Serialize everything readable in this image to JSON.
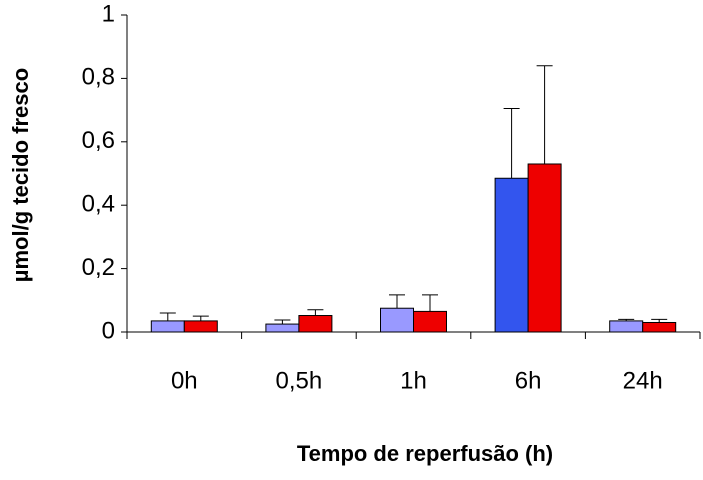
{
  "chart_data": {
    "type": "bar",
    "x_label": "Tempo de reperfusão (h)",
    "y_label": "µmol/g tecido fresco",
    "categories": [
      "0h",
      "0,5h",
      "1h",
      "6h",
      "24h"
    ],
    "series": [
      {
        "colors": [
          "#9999ff",
          "#9999ff",
          "#9999ff",
          "#3355ee",
          "#9999ff"
        ],
        "values": [
          0.035,
          0.025,
          0.075,
          0.485,
          0.035
        ],
        "errors": [
          0.025,
          0.013,
          0.042,
          0.22,
          0.005
        ]
      },
      {
        "colors": [
          "#ee0000",
          "#ee0000",
          "#ee0000",
          "#ee0000",
          "#ee0000"
        ],
        "values": [
          0.035,
          0.052,
          0.065,
          0.53,
          0.03
        ],
        "errors": [
          0.015,
          0.018,
          0.052,
          0.31,
          0.01
        ]
      }
    ],
    "ylim": [
      0,
      1
    ],
    "yticks": [
      0,
      {
        "value": 0.2,
        "label": "0,2"
      },
      {
        "value": 0.4,
        "label": "0,4"
      },
      {
        "value": 0.6,
        "label": "0,6"
      },
      {
        "value": 0.8,
        "label": "0,8"
      },
      1
    ],
    "grid": false
  }
}
